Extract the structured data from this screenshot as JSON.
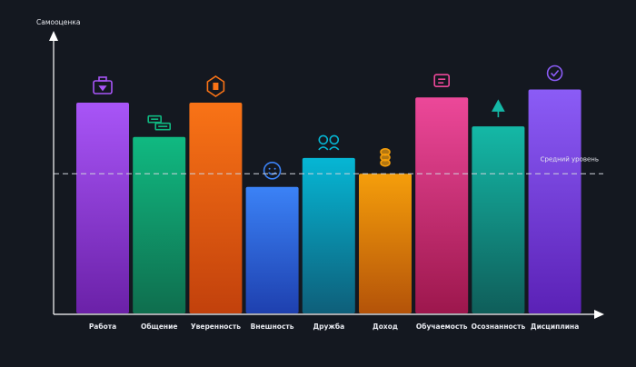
{
  "chart_data": {
    "type": "bar",
    "title": "",
    "ylabel": "Самооценка",
    "xlabel": "",
    "categories": [
      "Работа",
      "Общение",
      "Уверенность",
      "Внешность",
      "Дружба",
      "Доход",
      "Обучаемость",
      "Осознанность",
      "Дисциплина"
    ],
    "values": [
      80,
      67,
      80,
      48,
      59,
      53,
      82,
      71,
      85
    ],
    "ylim": [
      0,
      100
    ],
    "grid": false,
    "reference_line": {
      "label": "Средний уровень",
      "value": 53
    },
    "bar_gradients": [
      [
        "#a855f7",
        "#6b21a8"
      ],
      [
        "#10b981",
        "#0f6e4e"
      ],
      [
        "#f97316",
        "#c2410c"
      ],
      [
        "#3b82f6",
        "#1e40af"
      ],
      [
        "#06b6d4",
        "#0e5f7a"
      ],
      [
        "#f59e0b",
        "#b45309"
      ],
      [
        "#ec4899",
        "#9d174d"
      ],
      [
        "#14b8a6",
        "#0f5e5a"
      ],
      [
        "#8b5cf6",
        "#5b21b6"
      ]
    ],
    "icons": [
      "briefcase-icon",
      "chat-bubbles-icon",
      "shield-badge-icon",
      "smiley-face-icon",
      "two-people-icon",
      "coin-stack-icon",
      "book-icon",
      "lotus-icon",
      "check-circle-icon"
    ]
  }
}
